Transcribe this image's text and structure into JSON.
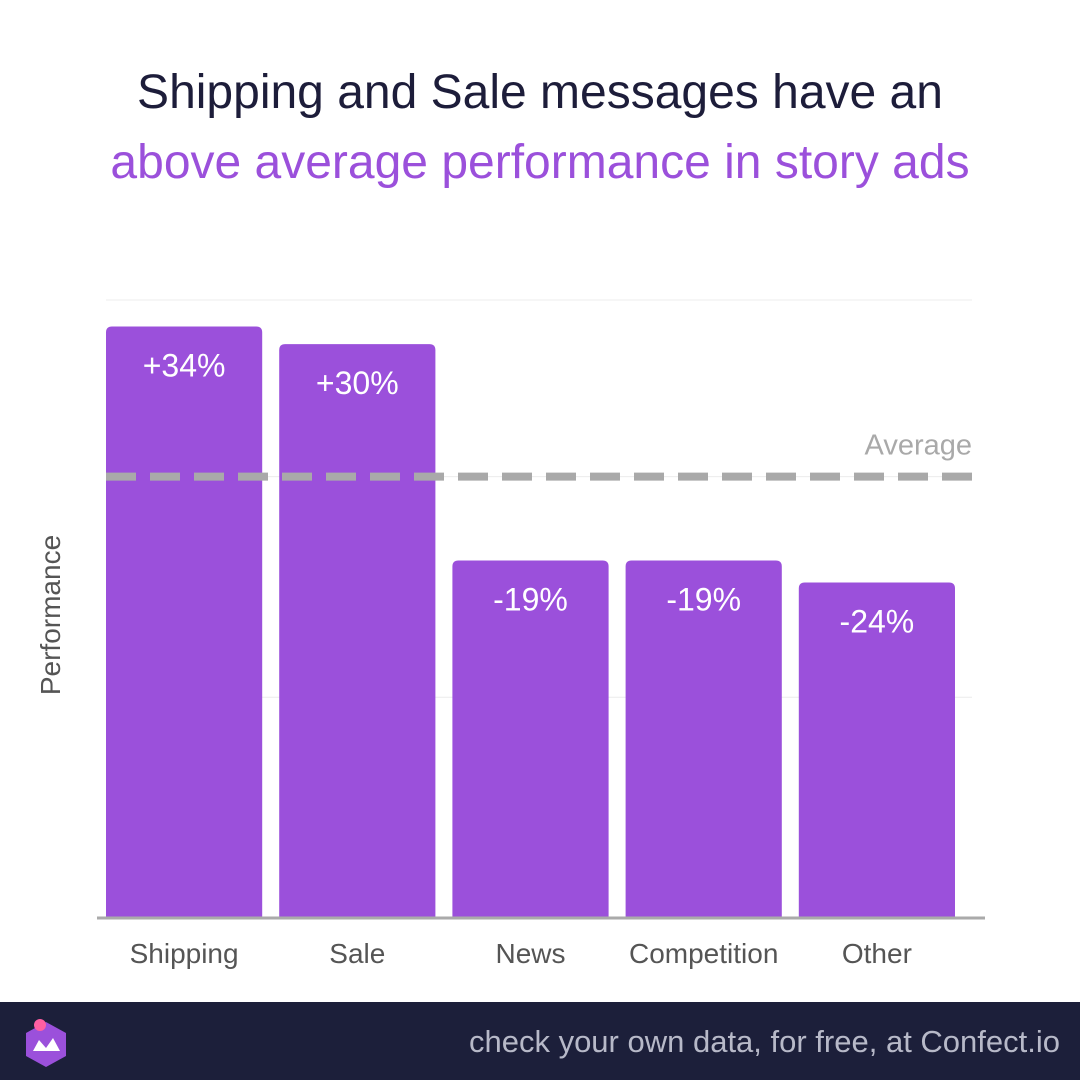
{
  "header": {
    "title_line1": "Shipping and Sale messages have an",
    "title_line2": "above average performance in story ads"
  },
  "chart_data": {
    "type": "bar",
    "categories": [
      "Shipping",
      "Sale",
      "News",
      "Competition",
      "Other"
    ],
    "values": [
      34,
      30,
      -19,
      -19,
      -24
    ],
    "value_labels": [
      "+34%",
      "+30%",
      "-19%",
      "-19%",
      "-24%"
    ],
    "baseline": 0,
    "baseline_label": "Average",
    "ylabel": "Performance",
    "xlabel": "",
    "ylim": [
      -100,
      40
    ],
    "grid": true,
    "colors": {
      "bar": "#9b50db",
      "average_line": "#a9a9a9",
      "grid": "#ececec",
      "axis": "#aaaaaa",
      "text": "#555555"
    }
  },
  "footer": {
    "cta": "check your own data, for free, at Confect.io",
    "logo_icon": "confect-logo-icon"
  }
}
